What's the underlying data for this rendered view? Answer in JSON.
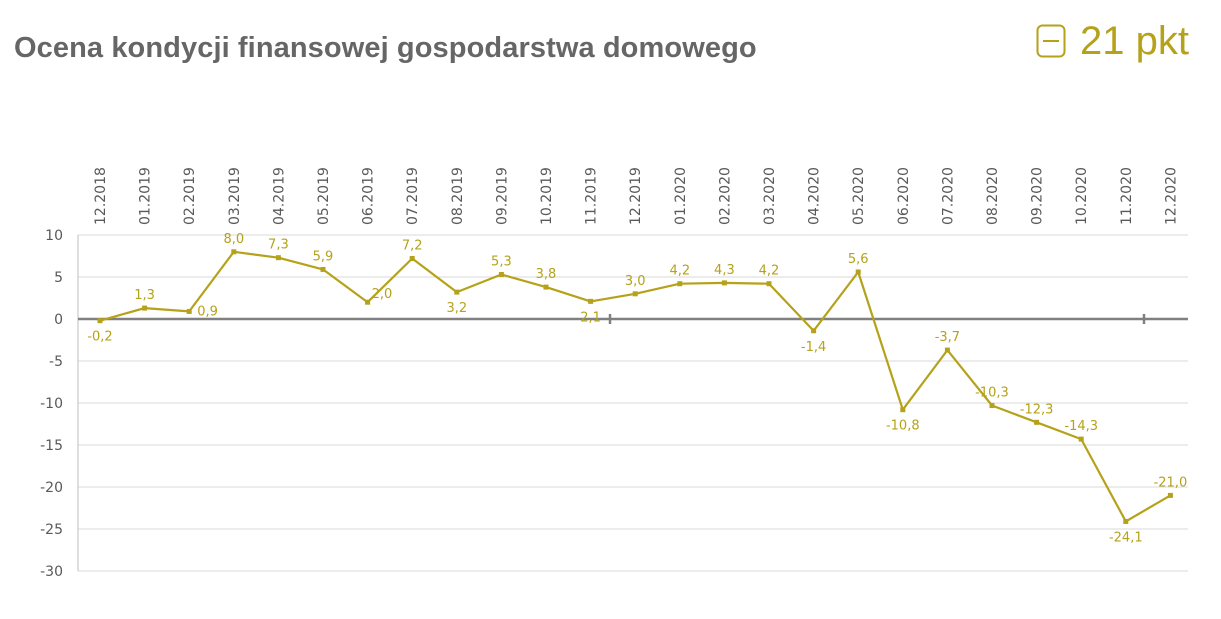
{
  "title": "Ocena kondycji finansowej gospodarstwa domowego",
  "badge": {
    "value": "21 pkt",
    "icon": "minus-box-icon",
    "color": "#b5a21a"
  },
  "chart_data": {
    "type": "line",
    "title": "Ocena kondycji finansowej gospodarstwa domowego",
    "xlabel": "",
    "ylabel": "",
    "ylim": [
      -30,
      10
    ],
    "yticks": [
      10,
      5,
      0,
      -5,
      -10,
      -15,
      -20,
      -25,
      -30
    ],
    "grid": true,
    "x_axis_position": "top",
    "line_color": "#b5a21a",
    "categories": [
      "12.2018",
      "01.2019",
      "02.2019",
      "03.2019",
      "04.2019",
      "05.2019",
      "06.2019",
      "07.2019",
      "08.2019",
      "09.2019",
      "10.2019",
      "11.2019",
      "12.2019",
      "01.2020",
      "02.2020",
      "03.2020",
      "04.2020",
      "05.2020",
      "06.2020",
      "07.2020",
      "08.2020",
      "09.2020",
      "10.2020",
      "11.2020",
      "12.2020"
    ],
    "values": [
      -0.2,
      1.3,
      0.9,
      8.0,
      7.3,
      5.9,
      2.0,
      7.2,
      3.2,
      5.3,
      3.8,
      2.1,
      3.0,
      4.2,
      4.3,
      4.2,
      -1.4,
      5.6,
      -10.8,
      -3.7,
      -10.3,
      -12.3,
      -14.3,
      -24.1,
      -21.0
    ],
    "data_labels": [
      "-0,2",
      "1,3",
      "0,9",
      "8,0",
      "7,3",
      "5,9",
      "2,0",
      "7,2",
      "3,2",
      "5,3",
      "3,8",
      "2,1",
      "3,0",
      "4,2",
      "4,3",
      "4,2",
      "-1,4",
      "5,6",
      "-10,8",
      "-3,7",
      "-10,3",
      "-12,3",
      "-14,3",
      "-24,1",
      "-21,0"
    ]
  }
}
